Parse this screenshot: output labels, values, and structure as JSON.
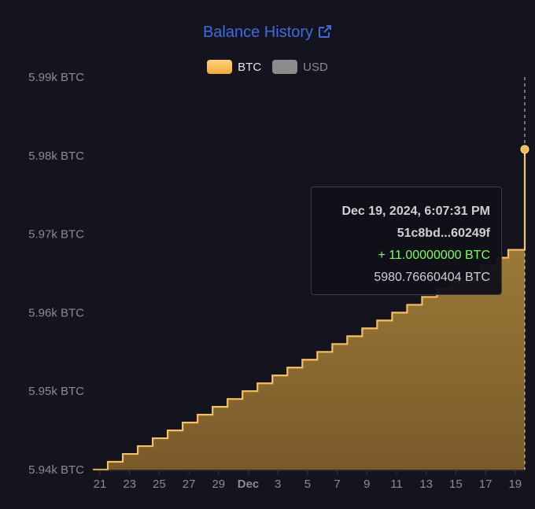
{
  "header": {
    "title": "Balance History"
  },
  "legend": [
    {
      "label": "BTC",
      "color": "#f7b84b"
    },
    {
      "label": "USD",
      "color": "#8c8c8c"
    }
  ],
  "tooltip": {
    "datetime": "Dec 19, 2024, 6:07:31 PM",
    "tx": "51c8bd...60249f",
    "delta": "+ 11.00000000 BTC",
    "balance": "5980.76660404 BTC"
  },
  "chart_data": {
    "type": "area",
    "series": [
      {
        "name": "BTC",
        "x": [
          "Nov 20",
          "Nov 21",
          "Nov 22",
          "Nov 23",
          "Nov 24",
          "Nov 25",
          "Nov 26",
          "Nov 27",
          "Nov 28",
          "Nov 29",
          "Nov 30",
          "Dec 1",
          "Dec 2",
          "Dec 3",
          "Dec 4",
          "Dec 5",
          "Dec 6",
          "Dec 7",
          "Dec 8",
          "Dec 9",
          "Dec 10",
          "Dec 11",
          "Dec 12",
          "Dec 13",
          "Dec 14",
          "Dec 15",
          "Dec 16",
          "Dec 17",
          "Dec 18",
          "Dec 19",
          "Dec 19"
        ],
        "y": [
          5940.0,
          5941.0,
          5942.0,
          5943.0,
          5944.0,
          5945.0,
          5946.0,
          5947.0,
          5948.0,
          5949.0,
          5950.0,
          5951.0,
          5952.0,
          5953.0,
          5954.0,
          5955.0,
          5956.0,
          5957.0,
          5958.0,
          5959.0,
          5960.0,
          5961.0,
          5962.0,
          5963.0,
          5964.0,
          5965.0,
          5966.0,
          5967.0,
          5968.0,
          5969.8,
          5980.8
        ]
      }
    ],
    "y_ticks": [
      "5.94k BTC",
      "5.95k BTC",
      "5.96k BTC",
      "5.97k BTC",
      "5.98k BTC",
      "5.99k BTC"
    ],
    "ylim": [
      5940,
      5990
    ],
    "x_ticks": [
      "21",
      "23",
      "25",
      "27",
      "29",
      "Dec",
      "3",
      "5",
      "7",
      "9",
      "11",
      "13",
      "15",
      "17",
      "19"
    ],
    "grid": false,
    "legend_position": "top-center"
  }
}
